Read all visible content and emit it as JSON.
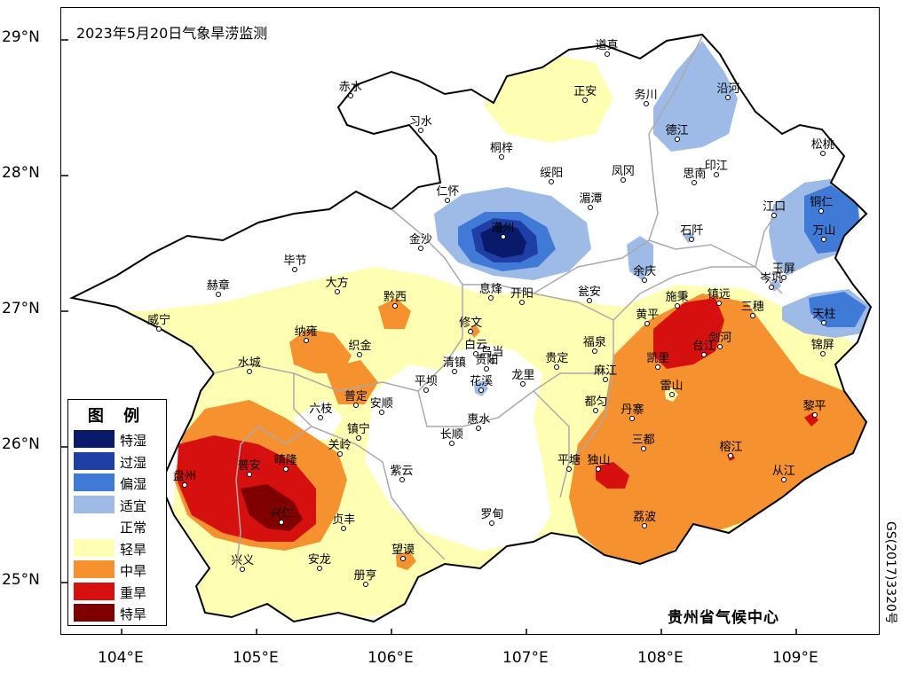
{
  "title": "2023年5月20日气象旱涝监测",
  "credit": "贵州省气候中心",
  "side_code": "GS(2017)3320号",
  "lat_labels": [
    "29°N",
    "28°N",
    "27°N",
    "26°N",
    "25°N"
  ],
  "lon_labels": [
    "104°E",
    "105°E",
    "106°E",
    "107°E",
    "108°E",
    "109°E"
  ],
  "legend": {
    "title": "图 例",
    "items": [
      {
        "label": "特湿",
        "color": "#0a1a6b"
      },
      {
        "label": "过湿",
        "color": "#1f3fa6"
      },
      {
        "label": "偏湿",
        "color": "#3f7ad6"
      },
      {
        "label": "适宜",
        "color": "#9dbbe6"
      },
      {
        "label": "正常",
        "color": "#ffffff"
      },
      {
        "label": "轻旱",
        "color": "#ffffb3"
      },
      {
        "label": "中旱",
        "color": "#f5912f"
      },
      {
        "label": "重旱",
        "color": "#d60f0f"
      },
      {
        "label": "特旱",
        "color": "#800000"
      }
    ]
  },
  "cities": [
    {
      "name": "道真",
      "lon": 107.6,
      "lat": 28.89
    },
    {
      "name": "赤水",
      "lon": 105.7,
      "lat": 28.58
    },
    {
      "name": "习水",
      "lon": 106.22,
      "lat": 28.33
    },
    {
      "name": "正安",
      "lon": 107.44,
      "lat": 28.55
    },
    {
      "name": "务川",
      "lon": 107.89,
      "lat": 28.52
    },
    {
      "name": "沿河",
      "lon": 108.5,
      "lat": 28.57
    },
    {
      "name": "德江",
      "lon": 108.12,
      "lat": 28.26
    },
    {
      "name": "松桃",
      "lon": 109.2,
      "lat": 28.16
    },
    {
      "name": "桐梓",
      "lon": 106.82,
      "lat": 28.13
    },
    {
      "name": "绥阳",
      "lon": 107.19,
      "lat": 27.95
    },
    {
      "name": "凤冈",
      "lon": 107.72,
      "lat": 27.96
    },
    {
      "name": "印江",
      "lon": 108.41,
      "lat": 28.0
    },
    {
      "name": "思南",
      "lon": 108.25,
      "lat": 27.94
    },
    {
      "name": "仁怀",
      "lon": 106.42,
      "lat": 27.81
    },
    {
      "name": "湄潭",
      "lon": 107.48,
      "lat": 27.76
    },
    {
      "name": "江口",
      "lon": 108.84,
      "lat": 27.7
    },
    {
      "name": "铜仁",
      "lon": 109.19,
      "lat": 27.73
    },
    {
      "name": "石阡",
      "lon": 108.23,
      "lat": 27.52
    },
    {
      "name": "万山",
      "lon": 109.21,
      "lat": 27.52
    },
    {
      "name": "金沙",
      "lon": 106.22,
      "lat": 27.46
    },
    {
      "name": "遵州",
      "lon": 106.83,
      "lat": 27.54
    },
    {
      "name": "毕节",
      "lon": 105.29,
      "lat": 27.3
    },
    {
      "name": "余庆",
      "lon": 107.88,
      "lat": 27.22
    },
    {
      "name": "玉屏",
      "lon": 108.91,
      "lat": 27.24
    },
    {
      "name": "岑巩",
      "lon": 108.82,
      "lat": 27.17
    },
    {
      "name": "赫章",
      "lon": 104.72,
      "lat": 27.12
    },
    {
      "name": "大方",
      "lon": 105.6,
      "lat": 27.14
    },
    {
      "name": "息烽",
      "lon": 106.74,
      "lat": 27.09
    },
    {
      "name": "开阳",
      "lon": 106.97,
      "lat": 27.06
    },
    {
      "name": "瓮安",
      "lon": 107.47,
      "lat": 27.07
    },
    {
      "name": "施秉",
      "lon": 108.12,
      "lat": 27.03
    },
    {
      "name": "镇远",
      "lon": 108.43,
      "lat": 27.05
    },
    {
      "name": "三穗",
      "lon": 108.68,
      "lat": 26.96
    },
    {
      "name": "黔西",
      "lon": 106.03,
      "lat": 27.03
    },
    {
      "name": "天柱",
      "lon": 109.21,
      "lat": 26.91
    },
    {
      "name": "威宁",
      "lon": 104.28,
      "lat": 26.86
    },
    {
      "name": "黄平",
      "lon": 107.9,
      "lat": 26.9
    },
    {
      "name": "修文",
      "lon": 106.59,
      "lat": 26.84
    },
    {
      "name": "纳雍",
      "lon": 105.37,
      "lat": 26.78
    },
    {
      "name": "福泉",
      "lon": 107.51,
      "lat": 26.7
    },
    {
      "name": "剑河",
      "lon": 108.44,
      "lat": 26.73
    },
    {
      "name": "白云",
      "lon": 106.63,
      "lat": 26.68
    },
    {
      "name": "织金",
      "lon": 105.77,
      "lat": 26.67
    },
    {
      "name": "台江",
      "lon": 108.32,
      "lat": 26.67
    },
    {
      "name": "乌当",
      "lon": 106.75,
      "lat": 26.63
    },
    {
      "name": "贵阳",
      "lon": 106.71,
      "lat": 26.57
    },
    {
      "name": "凯里",
      "lon": 107.98,
      "lat": 26.58
    },
    {
      "name": "水城",
      "lon": 104.95,
      "lat": 26.55
    },
    {
      "name": "清镇",
      "lon": 106.47,
      "lat": 26.55
    },
    {
      "name": "贵定",
      "lon": 107.23,
      "lat": 26.58
    },
    {
      "name": "锦屏",
      "lon": 109.2,
      "lat": 26.68
    },
    {
      "name": "麻江",
      "lon": 107.59,
      "lat": 26.49
    },
    {
      "name": "龙里",
      "lon": 106.98,
      "lat": 26.46
    },
    {
      "name": "花溪",
      "lon": 106.67,
      "lat": 26.41
    },
    {
      "name": "平坝",
      "lon": 106.26,
      "lat": 26.41
    },
    {
      "name": "雷山",
      "lon": 108.08,
      "lat": 26.38
    },
    {
      "name": "都匀",
      "lon": 107.52,
      "lat": 26.26
    },
    {
      "name": "普定",
      "lon": 105.74,
      "lat": 26.3
    },
    {
      "name": "安顺",
      "lon": 105.93,
      "lat": 26.25
    },
    {
      "name": "六枝",
      "lon": 105.48,
      "lat": 26.21
    },
    {
      "name": "丹寨",
      "lon": 107.79,
      "lat": 26.2
    },
    {
      "name": "黎平",
      "lon": 109.14,
      "lat": 26.23
    },
    {
      "name": "惠水",
      "lon": 106.65,
      "lat": 26.13
    },
    {
      "name": "镇宁",
      "lon": 105.76,
      "lat": 26.06
    },
    {
      "name": "长顺",
      "lon": 106.45,
      "lat": 26.02
    },
    {
      "name": "三都",
      "lon": 107.87,
      "lat": 25.98
    },
    {
      "name": "关岭",
      "lon": 105.62,
      "lat": 25.94
    },
    {
      "name": "榕江",
      "lon": 108.52,
      "lat": 25.93
    },
    {
      "name": "晴隆",
      "lon": 105.22,
      "lat": 25.83
    },
    {
      "name": "平塘",
      "lon": 107.32,
      "lat": 25.83
    },
    {
      "name": "独山",
      "lon": 107.54,
      "lat": 25.83
    },
    {
      "name": "普安",
      "lon": 104.95,
      "lat": 25.79
    },
    {
      "name": "从江",
      "lon": 108.91,
      "lat": 25.75
    },
    {
      "name": "盘州",
      "lon": 104.47,
      "lat": 25.71
    },
    {
      "name": "紫云",
      "lon": 106.08,
      "lat": 25.75
    },
    {
      "name": "兴仁",
      "lon": 105.19,
      "lat": 25.44
    },
    {
      "name": "罗甸",
      "lon": 106.75,
      "lat": 25.43
    },
    {
      "name": "荔波",
      "lon": 107.88,
      "lat": 25.41
    },
    {
      "name": "贞丰",
      "lon": 105.65,
      "lat": 25.39
    },
    {
      "name": "望谟",
      "lon": 106.09,
      "lat": 25.17
    },
    {
      "name": "兴义",
      "lon": 104.9,
      "lat": 25.09
    },
    {
      "name": "安龙",
      "lon": 105.47,
      "lat": 25.1
    },
    {
      "name": "册亨",
      "lon": 105.81,
      "lat": 24.98
    }
  ]
}
